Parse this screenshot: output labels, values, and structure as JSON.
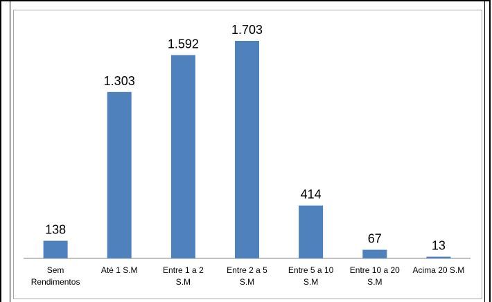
{
  "chart_data": {
    "type": "bar",
    "categories": [
      [
        "Sem",
        "Rendimentos"
      ],
      [
        "Até 1 S.M"
      ],
      [
        "Entre 1 a 2",
        "S.M"
      ],
      [
        "Entre 2 a 5",
        "S.M"
      ],
      [
        "Entre 5 a 10",
        "S.M"
      ],
      [
        "Entre 10 a 20",
        "S.M"
      ],
      [
        "Acima 20 S.M"
      ]
    ],
    "values": [
      138,
      1303,
      1592,
      1703,
      414,
      67,
      13
    ],
    "value_labels": [
      "138",
      "1.303",
      "1.592",
      "1.703",
      "414",
      "67",
      "13"
    ],
    "ylim": [
      0,
      1703
    ],
    "bar_color": "#4f81bd",
    "grid": false,
    "legend": "none"
  }
}
